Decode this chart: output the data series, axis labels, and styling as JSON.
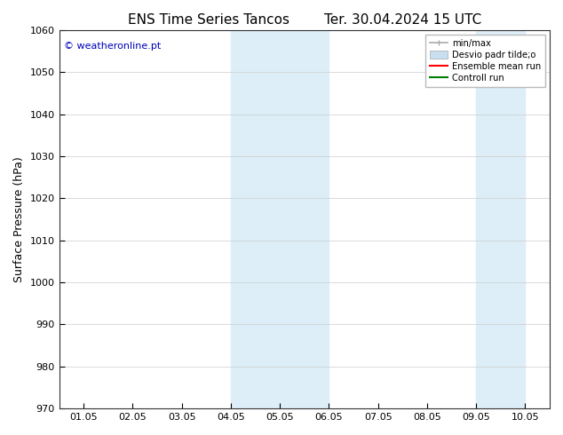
{
  "title_left": "ENS Time Series Tancos",
  "title_right": "Ter. 30.04.2024 15 UTC",
  "ylabel": "Surface Pressure (hPa)",
  "ylim": [
    970,
    1060
  ],
  "yticks": [
    970,
    980,
    990,
    1000,
    1010,
    1020,
    1030,
    1040,
    1050,
    1060
  ],
  "xtick_labels": [
    "01.05",
    "02.05",
    "03.05",
    "04.05",
    "05.05",
    "06.05",
    "07.05",
    "08.05",
    "09.05",
    "10.05"
  ],
  "x_positions": [
    0,
    1,
    2,
    3,
    4,
    5,
    6,
    7,
    8,
    9
  ],
  "watermark": "© weatheronline.pt",
  "watermark_color": "#0000bb",
  "legend_entries": [
    "min/max",
    "Desvio padr tilde;o",
    "Ensemble mean run",
    "Controll run"
  ],
  "legend_colors_line": [
    "#aaaaaa",
    "#c8dff0",
    "#ff0000",
    "#008000"
  ],
  "shaded_regions": [
    {
      "xstart": 3,
      "xend": 5,
      "color": "#ddeef8"
    },
    {
      "xstart": 8,
      "xend": 9,
      "color": "#ddeef8"
    }
  ],
  "background_color": "#ffffff",
  "grid_color": "#cccccc",
  "title_fontsize": 11,
  "tick_fontsize": 8,
  "ylabel_fontsize": 9,
  "watermark_fontsize": 8
}
